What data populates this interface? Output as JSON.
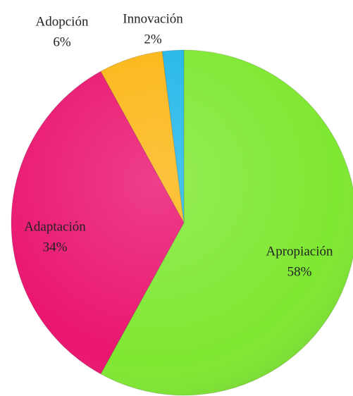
{
  "chart_data": {
    "type": "pie",
    "categories": [
      "Apropiación",
      "Adaptación",
      "Adopción",
      "Innovación"
    ],
    "values": [
      58,
      34,
      6,
      2
    ],
    "value_labels": [
      "58%",
      "34%",
      "6%",
      "2%"
    ],
    "colors": [
      "#7fe832",
      "#ea1570",
      "#fbb614",
      "#21b6ea"
    ]
  }
}
